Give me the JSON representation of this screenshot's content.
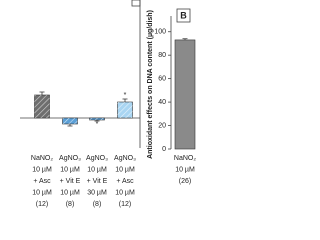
{
  "chart_data": [
    {
      "type": "bar",
      "categories": [
        [
          "NaNO₂",
          "10 µM",
          "+ Asc",
          "10 µM",
          "(12)"
        ],
        [
          "AgNO₃",
          "10 µM",
          "+ Vit E",
          "10 µM",
          "(8)"
        ],
        [
          "AgNO₃",
          "10 µM",
          "+ Vit E",
          "30 µM",
          "(8)"
        ],
        [
          "AgNO₃",
          "10 µM",
          "+ Asc",
          "10 µM",
          "(12)"
        ]
      ],
      "values": [
        23,
        -6,
        -2,
        16
      ],
      "errors": [
        3,
        2,
        1,
        3
      ],
      "colors": [
        "#6e6e6e",
        "#5b9fd6",
        "#5b9fd6",
        "#a9d5f2"
      ],
      "hatch": true,
      "markers": [
        null,
        null,
        "*",
        "*"
      ],
      "ylim": [
        -30,
        118
      ]
    },
    {
      "type": "bar",
      "panel": "B",
      "ylabel": "Antioxidant effects on DNA content (µg/dish)",
      "categories": [
        [
          "NaNO₂",
          "10 µM",
          "(26)"
        ]
      ],
      "values": [
        93
      ],
      "errors": [
        1
      ],
      "colors": [
        "#8a8a8a"
      ],
      "ylim": [
        0,
        110
      ],
      "yticks": [
        0,
        20,
        40,
        60,
        80,
        100
      ]
    }
  ]
}
